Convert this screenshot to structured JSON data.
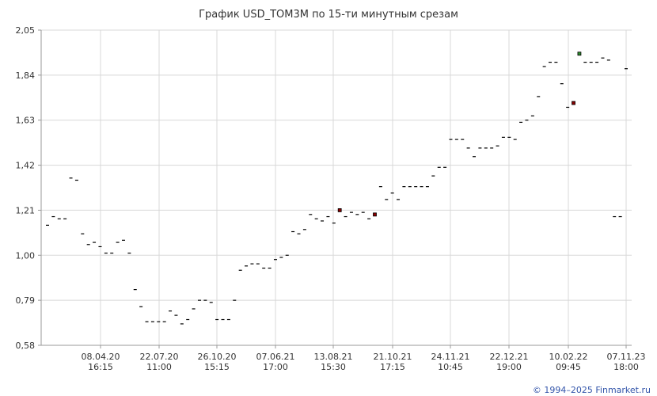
{
  "chart_data": {
    "type": "candlestick",
    "title": "График USD_TOM3M по 15-ти минутным срезам",
    "y_ticks": [
      "2,05",
      "1,84",
      "1,63",
      "1,42",
      "1,21",
      "1,00",
      "0,79",
      "0,58"
    ],
    "ylim": [
      0.58,
      2.05
    ],
    "grid": true,
    "x_ticks": [
      {
        "date": "08.04.20",
        "time": "16:15"
      },
      {
        "date": "22.07.20",
        "time": "11:00"
      },
      {
        "date": "26.10.20",
        "time": "15:15"
      },
      {
        "date": "07.06.21",
        "time": "17:00"
      },
      {
        "date": "13.08.21",
        "time": "15:30"
      },
      {
        "date": "21.10.21",
        "time": "17:15"
      },
      {
        "date": "24.11.21",
        "time": "10:45"
      },
      {
        "date": "22.12.21",
        "time": "19:00"
      },
      {
        "date": "10.02.22",
        "time": "09:45"
      },
      {
        "date": "07.11.23",
        "time": "18:00"
      }
    ],
    "values": [
      1.14,
      1.18,
      1.17,
      1.17,
      1.36,
      1.35,
      1.1,
      1.05,
      1.06,
      1.04,
      1.01,
      1.01,
      1.06,
      1.07,
      1.01,
      0.84,
      0.76,
      0.69,
      0.69,
      0.69,
      0.69,
      0.74,
      0.72,
      0.68,
      0.7,
      0.75,
      0.79,
      0.79,
      0.78,
      0.7,
      0.7,
      0.7,
      0.79,
      0.93,
      0.95,
      0.96,
      0.96,
      0.94,
      0.94,
      0.98,
      0.99,
      1.0,
      1.11,
      1.1,
      1.12,
      1.19,
      1.17,
      1.16,
      1.18,
      1.15,
      1.21,
      1.18,
      1.2,
      1.19,
      1.2,
      1.17,
      1.19,
      1.32,
      1.26,
      1.29,
      1.26,
      1.32,
      1.32,
      1.32,
      1.32,
      1.32,
      1.37,
      1.41,
      1.41,
      1.54,
      1.54,
      1.54,
      1.5,
      1.46,
      1.5,
      1.5,
      1.5,
      1.51,
      1.55,
      1.55,
      1.54,
      1.62,
      1.63,
      1.65,
      1.74,
      1.88,
      1.9,
      1.9,
      1.8,
      1.69,
      1.71,
      1.94,
      1.9,
      1.9,
      1.9,
      1.92,
      1.91,
      1.18,
      1.18,
      1.87
    ],
    "marked_candles": [
      {
        "index": 50,
        "color": "#8b0000"
      },
      {
        "index": 56,
        "color": "#8b0000"
      },
      {
        "index": 90,
        "color": "#8b0000"
      },
      {
        "index": 91,
        "color": "#2e8b2e"
      }
    ]
  },
  "footer": {
    "copyright": "© 1994–2025 Finmarket.ru"
  }
}
